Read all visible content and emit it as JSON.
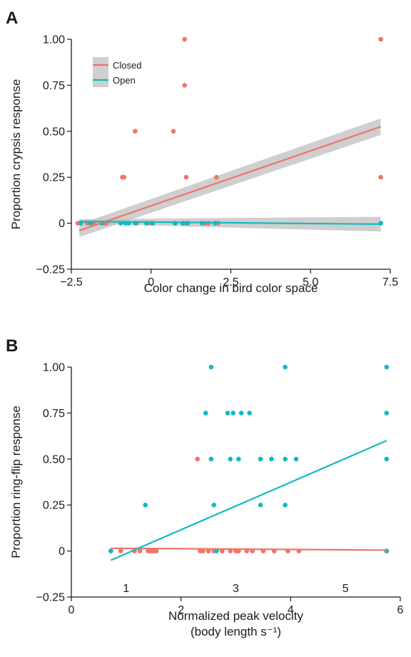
{
  "colors": {
    "closed": "#f07469",
    "open": "#13b9c2",
    "band": "#bfbfbf",
    "axis": "#1a1a1a"
  },
  "chart_data": [
    {
      "panel_label": "A",
      "type": "scatter",
      "xlabel": "Color change in bird color space",
      "ylabel": "Proportion crypsis response",
      "xlim": [
        -2.5,
        7.5
      ],
      "ylim": [
        -0.25,
        1.0
      ],
      "xticks": [
        -2.5,
        0,
        2.5,
        5.0,
        7.5
      ],
      "xtick_labels": [
        "−2.5",
        "0",
        "2.5",
        "5.0",
        "7.5"
      ],
      "yticks": [
        -0.25,
        0,
        0.25,
        0.5,
        0.75,
        1.0
      ],
      "ytick_labels": [
        "−0.25",
        "0",
        "0.25",
        "0.50",
        "0.75",
        "1.00"
      ],
      "grid": false,
      "legend_position": "top-left",
      "series": [
        {
          "name": "Closed",
          "color_key": "closed",
          "points": [
            [
              -2.3,
              0
            ],
            [
              -2.0,
              0
            ],
            [
              -1.9,
              0
            ],
            [
              -1.8,
              0
            ],
            [
              -1.5,
              0
            ],
            [
              -1.45,
              0
            ],
            [
              -1.4,
              0
            ],
            [
              -0.9,
              0.25
            ],
            [
              -0.85,
              0.25
            ],
            [
              -0.8,
              0
            ],
            [
              -0.5,
              0.5
            ],
            [
              -0.45,
              0
            ],
            [
              -0.1,
              0
            ],
            [
              0.0,
              0
            ],
            [
              0.7,
              0.5
            ],
            [
              1.05,
              1.0
            ],
            [
              1.05,
              0.75
            ],
            [
              1.1,
              0.25
            ],
            [
              1.1,
              0
            ],
            [
              1.7,
              0
            ],
            [
              1.8,
              0
            ],
            [
              2.05,
              0.25
            ],
            [
              2.1,
              0
            ],
            [
              7.2,
              1.0
            ],
            [
              7.2,
              0.25
            ],
            [
              7.2,
              0
            ]
          ],
          "fit": {
            "x": [
              -2.25,
              7.2
            ],
            "y": [
              -0.04,
              0.525
            ],
            "ci_halfwidth": [
              0.035,
              0.045
            ]
          }
        },
        {
          "name": "Open",
          "color_key": "open",
          "points": [
            [
              -2.2,
              0
            ],
            [
              -1.9,
              0
            ],
            [
              -1.55,
              0
            ],
            [
              -0.95,
              0
            ],
            [
              -0.8,
              0
            ],
            [
              -0.7,
              0
            ],
            [
              -0.5,
              0
            ],
            [
              -0.15,
              0
            ],
            [
              0.05,
              0
            ],
            [
              0.75,
              0
            ],
            [
              1.0,
              0
            ],
            [
              1.15,
              0
            ],
            [
              1.6,
              0
            ],
            [
              2.0,
              0
            ],
            [
              7.2,
              0
            ]
          ],
          "fit": {
            "x": [
              -2.25,
              7.2
            ],
            "y": [
              0.01,
              -0.005
            ],
            "ci_halfwidth": [
              0.012,
              0.04
            ]
          }
        }
      ]
    },
    {
      "panel_label": "B",
      "type": "scatter",
      "xlabel": "Normalized peak velocity",
      "xlabel_line2": "(body length s⁻¹)",
      "ylabel": "Proportion ring-flip response",
      "xlim": [
        0,
        6
      ],
      "ylim": [
        -0.25,
        1.0
      ],
      "xticks": [
        0,
        2,
        4,
        6
      ],
      "xtick_labels": [
        "0",
        "2",
        "4",
        "6"
      ],
      "xticks_minor": [
        1,
        3,
        5
      ],
      "xtick_labels_minor": [
        "1",
        "3",
        "5"
      ],
      "yticks": [
        -0.25,
        0,
        0.25,
        0.5,
        0.75,
        1.0
      ],
      "ytick_labels": [
        "−0.25",
        "0",
        "0.25",
        "0.50",
        "0.75",
        "1.00"
      ],
      "grid": false,
      "series": [
        {
          "name": "Closed",
          "color_key": "closed",
          "points": [
            [
              0.72,
              0
            ],
            [
              0.9,
              0
            ],
            [
              1.15,
              0
            ],
            [
              1.25,
              0
            ],
            [
              1.4,
              0
            ],
            [
              1.45,
              0
            ],
            [
              1.5,
              0
            ],
            [
              1.55,
              0
            ],
            [
              2.3,
              0.5
            ],
            [
              2.35,
              0
            ],
            [
              2.4,
              0
            ],
            [
              2.5,
              0
            ],
            [
              2.6,
              0
            ],
            [
              2.75,
              0
            ],
            [
              2.9,
              0
            ],
            [
              3.0,
              0
            ],
            [
              3.05,
              0
            ],
            [
              3.2,
              0
            ],
            [
              3.3,
              0
            ],
            [
              3.5,
              0
            ],
            [
              3.7,
              0
            ],
            [
              3.95,
              0
            ],
            [
              4.15,
              0
            ],
            [
              5.75,
              0
            ]
          ],
          "fit": {
            "x": [
              0.72,
              5.75
            ],
            "y": [
              0.015,
              0.005
            ]
          }
        },
        {
          "name": "Open",
          "color_key": "open",
          "points": [
            [
              0.72,
              0
            ],
            [
              1.35,
              0.25
            ],
            [
              2.45,
              0.75
            ],
            [
              2.55,
              1.0
            ],
            [
              2.55,
              0.5
            ],
            [
              2.6,
              0.25
            ],
            [
              2.65,
              0
            ],
            [
              2.85,
              0.75
            ],
            [
              2.9,
              0.5
            ],
            [
              2.95,
              0.75
            ],
            [
              3.05,
              0.5
            ],
            [
              3.1,
              0.75
            ],
            [
              3.25,
              0.75
            ],
            [
              3.45,
              0.5
            ],
            [
              3.45,
              0.25
            ],
            [
              3.65,
              0.5
            ],
            [
              3.9,
              1.0
            ],
            [
              3.9,
              0.5
            ],
            [
              3.9,
              0.25
            ],
            [
              4.1,
              0.5
            ],
            [
              5.75,
              1.0
            ],
            [
              5.75,
              0.75
            ],
            [
              5.75,
              0.5
            ],
            [
              5.75,
              0
            ]
          ],
          "fit": {
            "x": [
              0.72,
              5.75
            ],
            "y": [
              -0.05,
              0.6
            ]
          }
        }
      ]
    }
  ]
}
